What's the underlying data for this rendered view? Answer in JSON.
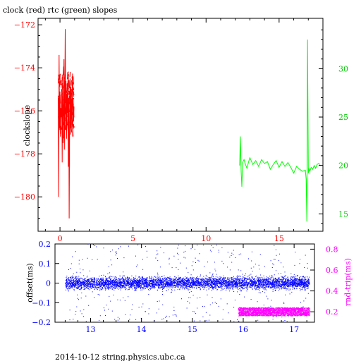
{
  "chart_data": [
    {
      "type": "line",
      "title": "clock (red) rtc (green) slopes",
      "ylabel": "clockslope",
      "xlabel": "",
      "xlim": [
        -1.5,
        18
      ],
      "ylim": [
        -181.6,
        -171.7
      ],
      "xticks": [
        0,
        5,
        10,
        15
      ],
      "yticks": [
        -172,
        -174,
        -176,
        -178,
        -180
      ],
      "ylim_right": [
        13.2,
        35.2
      ],
      "yticks_right": [
        15,
        20,
        25,
        30
      ],
      "grid": false,
      "series": [
        {
          "color": "#ff0000",
          "axis": "left",
          "x": [
            -0.12,
            -0.09,
            -0.06,
            -0.03,
            0.0,
            0.03,
            0.06,
            0.09,
            0.12,
            0.15,
            0.18,
            0.21,
            0.24,
            0.27,
            0.3,
            0.33,
            0.36,
            0.39,
            0.42,
            0.45,
            0.48,
            0.51,
            0.54,
            0.57,
            0.6,
            0.63,
            0.66,
            0.69,
            0.72,
            0.75,
            0.78,
            0.81,
            0.84,
            0.87,
            0.9,
            0.93,
            0.96
          ],
          "y": [
            -175.4,
            -180.0,
            -173.4,
            -176.8,
            -175.1,
            -177.2,
            -175.9,
            -176.3,
            -175.0,
            -178.4,
            -174.8,
            -177.5,
            -176.2,
            -173.6,
            -177.8,
            -175.3,
            -172.2,
            -176.9,
            -174.7,
            -177.3,
            -175.2,
            -176.1,
            -174.6,
            -178.6,
            -175.4,
            -181.0,
            -176.4,
            -174.5,
            -177.1,
            -175.0,
            -176.8,
            -175.6,
            -174.6,
            -177.2,
            -175.4,
            -176.5,
            -175.8
          ]
        },
        {
          "color": "#00ff00",
          "axis": "right",
          "x": [
            12.3,
            12.35,
            12.4,
            12.45,
            12.5,
            12.6,
            12.7,
            12.8,
            12.9,
            13.0,
            13.2,
            13.4,
            13.6,
            13.8,
            14.0,
            14.2,
            14.4,
            14.6,
            14.8,
            15.0,
            15.2,
            15.4,
            15.6,
            15.8,
            16.0,
            16.2,
            16.4,
            16.6,
            16.8,
            16.85,
            16.9,
            16.95,
            17.0,
            17.05,
            17.1,
            17.2,
            17.3,
            17.4,
            17.5,
            17.6,
            17.7,
            17.8
          ],
          "y": [
            20.0,
            23.0,
            19.4,
            17.8,
            20.3,
            20.6,
            20.1,
            19.7,
            20.3,
            20.8,
            20.1,
            20.5,
            19.9,
            20.6,
            20.2,
            20.4,
            19.6,
            20.1,
            20.5,
            19.8,
            20.4,
            19.9,
            20.3,
            19.8,
            19.2,
            19.9,
            19.6,
            19.4,
            19.5,
            18.6,
            14.2,
            33.0,
            19.2,
            19.7,
            19.4,
            19.8,
            19.6,
            20.0,
            19.7,
            20.1,
            20.2,
            20.1
          ]
        }
      ]
    },
    {
      "type": "scatter",
      "ylabel": "offset(ms)",
      "ylabel_right": "rnd-trip(ms)",
      "xlim": [
        12.3,
        17.4
      ],
      "ylim": [
        -0.2,
        0.2
      ],
      "xticks": [
        13,
        14,
        15,
        16,
        17
      ],
      "yticks": [
        0.2,
        0.1,
        0,
        -0.1,
        -0.2
      ],
      "ylim_right": [
        0.1,
        0.85
      ],
      "yticks_right": [
        0.8,
        0.6,
        0.4,
        0.2
      ],
      "grid": false,
      "series": [
        {
          "color": "#0000ff",
          "axis": "left",
          "x_range": [
            12.5,
            17.3
          ],
          "center": 0.0,
          "band_halfwidth": 0.03,
          "outlier_range": [
            -0.2,
            0.2
          ]
        },
        {
          "color": "#ff00ff",
          "axis": "right",
          "x_range": [
            15.9,
            17.3
          ],
          "center": 0.2,
          "band_halfwidth": 0.04
        }
      ]
    }
  ],
  "footer": "2014-10-12  string.physics.ubc.ca"
}
